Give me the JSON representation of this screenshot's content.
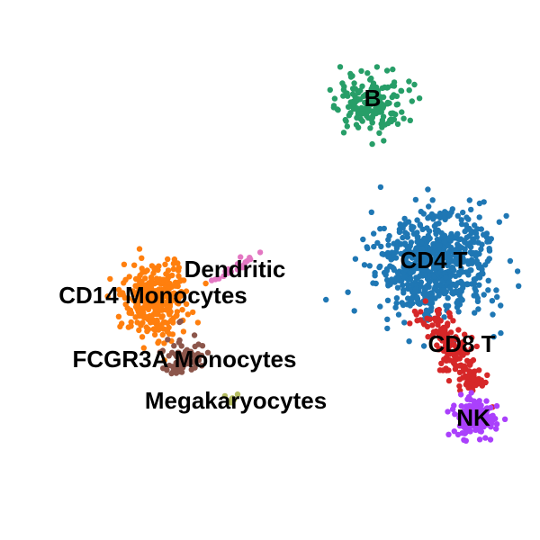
{
  "chart_data": {
    "type": "scatter",
    "title": "",
    "xlabel": "",
    "ylabel": "",
    "grid": false,
    "axes_visible": false,
    "legend": "on data",
    "series": [
      {
        "name": "B",
        "color": "#279e68",
        "center": [
          414,
          112
        ],
        "spread": [
          20,
          18
        ],
        "count": 170
      },
      {
        "name": "CD4 T",
        "color": "#1f77b4",
        "center": [
          482,
          292
        ],
        "spread": [
          30,
          28
        ],
        "count": 700
      },
      {
        "name": "CD8 T",
        "color": "#d62728",
        "center": [
          502,
          385
        ],
        "spread": [
          18,
          20
        ],
        "count": 180
      },
      {
        "name": "NK",
        "color": "#aa40fc",
        "center": [
          527,
          465
        ],
        "spread": [
          12,
          11
        ],
        "count": 150
      },
      {
        "name": "CD14 Monocytes",
        "color": "#ff7f0e",
        "center": [
          172,
          335
        ],
        "spread": [
          17,
          22
        ],
        "count": 320
      },
      {
        "name": "Dendritic",
        "color": "#e377c2",
        "center": [
          262,
          298
        ],
        "spread": [
          12,
          5
        ],
        "count": 20
      },
      {
        "name": "FCGR3A Monocytes",
        "color": "#8c564b",
        "center": [
          204,
          398
        ],
        "spread": [
          12,
          10
        ],
        "count": 80
      },
      {
        "name": "Megakaryocytes",
        "color": "#b5bd61",
        "center": [
          258,
          443
        ],
        "spread": [
          4,
          6
        ],
        "count": 7
      }
    ]
  }
}
